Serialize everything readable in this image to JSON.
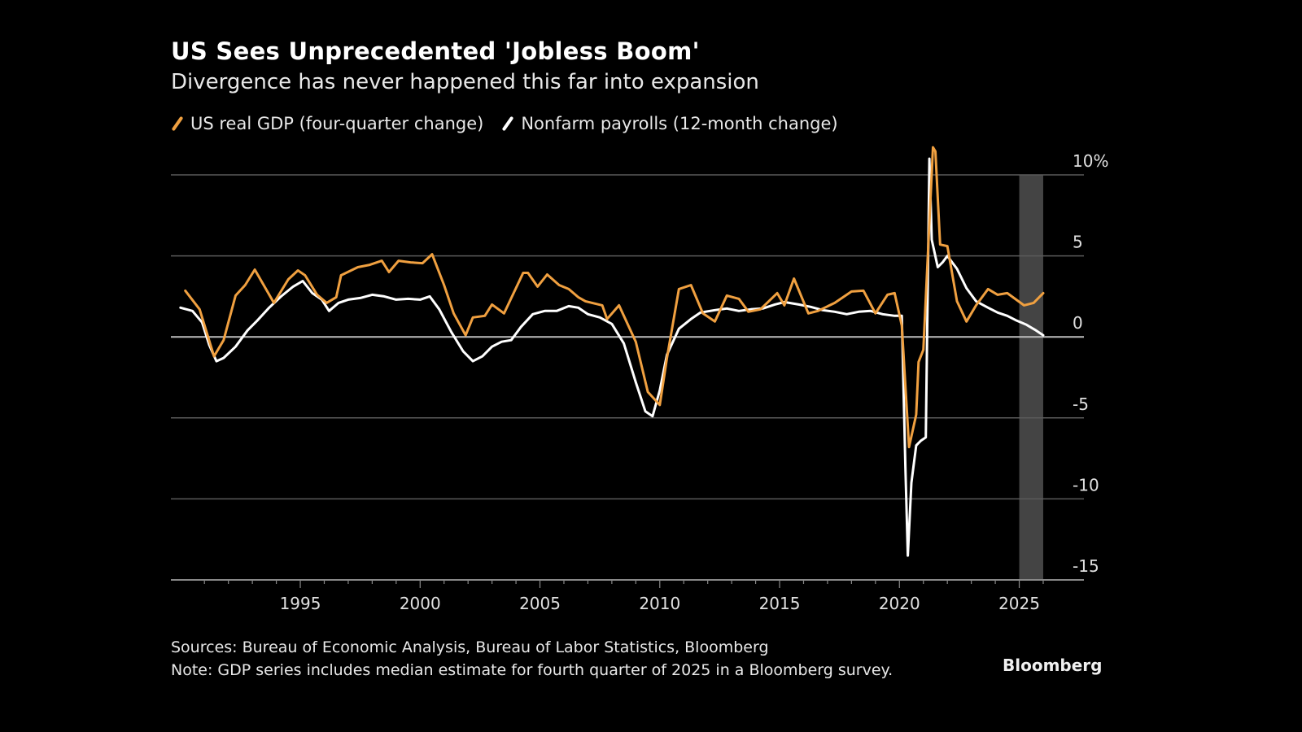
{
  "title": "US Sees Unprecedented 'Jobless Boom'",
  "subtitle": "Divergence has never happened this far into expansion",
  "legend": [
    {
      "label": "US real GDP (four-quarter change)",
      "color": "#f0a040",
      "icon": "slash-line-icon"
    },
    {
      "label": "Nonfarm payrolls (12-month change)",
      "color": "#ffffff",
      "icon": "slash-line-icon"
    }
  ],
  "footer": {
    "sources": "Sources: Bureau of Economic Analysis, Bureau of Labor Statistics, Bloomberg",
    "note": "Note: GDP series includes median estimate for fourth quarter of 2025 in a Bloomberg survey.",
    "brand": "Bloomberg"
  },
  "chart_data": {
    "type": "line",
    "title": "US Sees Unprecedented 'Jobless Boom'",
    "subtitle": "Divergence has never happened this far into expansion",
    "xlabel": "",
    "ylabel": "",
    "xlim": [
      1989.6,
      2027.7
    ],
    "ylim": [
      -15,
      10
    ],
    "x_ticks": [
      1995,
      2000,
      2005,
      2010,
      2015,
      2020,
      2025
    ],
    "x_tick_labels": [
      "1995",
      "2000",
      "2005",
      "2010",
      "2015",
      "2020",
      "2025"
    ],
    "y_ticks": [
      10,
      5,
      0,
      -5,
      -10,
      -15
    ],
    "y_tick_labels": [
      "10%",
      "5",
      "0",
      "-5",
      "-10",
      "-15"
    ],
    "y_axis_side": "right",
    "grid": true,
    "legend_position": "top-left",
    "shaded_region": {
      "x_start": 2025.0,
      "x_end": 2026.0,
      "color": "#444444"
    },
    "series": [
      {
        "name": "US real GDP (four-quarter change)",
        "color": "#f0a040",
        "points": [
          [
            1990.2,
            2.85
          ],
          [
            1990.8,
            1.7
          ],
          [
            1991.4,
            -1.2
          ],
          [
            1991.8,
            -0.2
          ],
          [
            1992.3,
            2.55
          ],
          [
            1992.7,
            3.2
          ],
          [
            1993.1,
            4.15
          ],
          [
            1993.9,
            2.1
          ],
          [
            1994.5,
            3.55
          ],
          [
            1994.9,
            4.1
          ],
          [
            1995.2,
            3.8
          ],
          [
            1995.7,
            2.6
          ],
          [
            1996.1,
            2.1
          ],
          [
            1996.5,
            2.45
          ],
          [
            1996.7,
            3.8
          ],
          [
            1997.4,
            4.3
          ],
          [
            1997.9,
            4.45
          ],
          [
            1998.4,
            4.7
          ],
          [
            1998.7,
            4.0
          ],
          [
            1999.1,
            4.7
          ],
          [
            1999.6,
            4.6
          ],
          [
            2000.1,
            4.55
          ],
          [
            2000.5,
            5.1
          ],
          [
            2001.0,
            3.2
          ],
          [
            2001.4,
            1.45
          ],
          [
            2001.9,
            0.1
          ],
          [
            2002.2,
            1.2
          ],
          [
            2002.7,
            1.3
          ],
          [
            2003.0,
            2.0
          ],
          [
            2003.5,
            1.45
          ],
          [
            2004.3,
            3.95
          ],
          [
            2004.5,
            3.95
          ],
          [
            2004.9,
            3.1
          ],
          [
            2005.3,
            3.85
          ],
          [
            2005.8,
            3.2
          ],
          [
            2006.2,
            2.95
          ],
          [
            2006.6,
            2.45
          ],
          [
            2006.9,
            2.2
          ],
          [
            2007.6,
            1.95
          ],
          [
            2007.8,
            1.1
          ],
          [
            2008.3,
            1.95
          ],
          [
            2009.0,
            -0.3
          ],
          [
            2009.5,
            -3.4
          ],
          [
            2010.0,
            -4.2
          ],
          [
            2010.3,
            -1.3
          ],
          [
            2010.8,
            2.95
          ],
          [
            2011.3,
            3.2
          ],
          [
            2011.8,
            1.45
          ],
          [
            2012.3,
            0.95
          ],
          [
            2012.8,
            2.55
          ],
          [
            2013.3,
            2.35
          ],
          [
            2013.7,
            1.55
          ],
          [
            2014.2,
            1.7
          ],
          [
            2014.9,
            2.7
          ],
          [
            2015.2,
            1.95
          ],
          [
            2015.6,
            3.6
          ],
          [
            2016.2,
            1.45
          ],
          [
            2016.6,
            1.6
          ],
          [
            2017.3,
            2.1
          ],
          [
            2018.0,
            2.8
          ],
          [
            2018.5,
            2.85
          ],
          [
            2019.0,
            1.45
          ],
          [
            2019.5,
            2.6
          ],
          [
            2019.8,
            2.7
          ],
          [
            2020.1,
            0.7
          ],
          [
            2020.4,
            -6.8
          ],
          [
            2020.7,
            -4.8
          ],
          [
            2020.8,
            -1.55
          ],
          [
            2021.0,
            -0.8
          ],
          [
            2021.4,
            11.7
          ],
          [
            2021.5,
            11.45
          ],
          [
            2021.7,
            5.7
          ],
          [
            2022.0,
            5.6
          ],
          [
            2022.4,
            2.2
          ],
          [
            2022.8,
            0.95
          ],
          [
            2023.2,
            1.95
          ],
          [
            2023.7,
            2.95
          ],
          [
            2024.1,
            2.6
          ],
          [
            2024.5,
            2.7
          ],
          [
            2025.2,
            1.95
          ],
          [
            2025.6,
            2.1
          ],
          [
            2026.0,
            2.7
          ]
        ]
      },
      {
        "name": "Nonfarm payrolls (12-month change)",
        "color": "#ffffff",
        "points": [
          [
            1990.0,
            1.8
          ],
          [
            1990.5,
            1.6
          ],
          [
            1990.9,
            0.9
          ],
          [
            1991.2,
            -0.5
          ],
          [
            1991.5,
            -1.5
          ],
          [
            1991.8,
            -1.3
          ],
          [
            1992.3,
            -0.6
          ],
          [
            1992.8,
            0.4
          ],
          [
            1993.2,
            1.0
          ],
          [
            1993.7,
            1.8
          ],
          [
            1994.2,
            2.5
          ],
          [
            1994.7,
            3.1
          ],
          [
            1995.1,
            3.45
          ],
          [
            1995.5,
            2.7
          ],
          [
            1995.9,
            2.3
          ],
          [
            1996.2,
            1.6
          ],
          [
            1996.6,
            2.1
          ],
          [
            1997.0,
            2.3
          ],
          [
            1997.5,
            2.4
          ],
          [
            1998.0,
            2.6
          ],
          [
            1998.5,
            2.5
          ],
          [
            1999.0,
            2.3
          ],
          [
            1999.5,
            2.35
          ],
          [
            2000.0,
            2.3
          ],
          [
            2000.4,
            2.5
          ],
          [
            2000.8,
            1.7
          ],
          [
            2001.3,
            0.3
          ],
          [
            2001.8,
            -0.9
          ],
          [
            2002.2,
            -1.5
          ],
          [
            2002.6,
            -1.2
          ],
          [
            2003.0,
            -0.6
          ],
          [
            2003.4,
            -0.3
          ],
          [
            2003.8,
            -0.2
          ],
          [
            2004.2,
            0.6
          ],
          [
            2004.7,
            1.4
          ],
          [
            2005.2,
            1.6
          ],
          [
            2005.7,
            1.6
          ],
          [
            2006.2,
            1.9
          ],
          [
            2006.6,
            1.8
          ],
          [
            2007.0,
            1.4
          ],
          [
            2007.5,
            1.2
          ],
          [
            2008.0,
            0.8
          ],
          [
            2008.5,
            -0.4
          ],
          [
            2009.0,
            -2.8
          ],
          [
            2009.4,
            -4.6
          ],
          [
            2009.7,
            -4.9
          ],
          [
            2010.0,
            -3.3
          ],
          [
            2010.3,
            -1.1
          ],
          [
            2010.8,
            0.5
          ],
          [
            2011.3,
            1.1
          ],
          [
            2011.7,
            1.5
          ],
          [
            2012.3,
            1.65
          ],
          [
            2012.8,
            1.75
          ],
          [
            2013.3,
            1.6
          ],
          [
            2013.8,
            1.7
          ],
          [
            2014.3,
            1.75
          ],
          [
            2014.8,
            2.0
          ],
          [
            2015.2,
            2.15
          ],
          [
            2015.8,
            2.0
          ],
          [
            2016.3,
            1.85
          ],
          [
            2016.8,
            1.65
          ],
          [
            2017.3,
            1.55
          ],
          [
            2017.8,
            1.4
          ],
          [
            2018.3,
            1.55
          ],
          [
            2018.8,
            1.6
          ],
          [
            2019.3,
            1.4
          ],
          [
            2019.8,
            1.3
          ],
          [
            2020.1,
            1.3
          ],
          [
            2020.25,
            -8.0
          ],
          [
            2020.35,
            -13.5
          ],
          [
            2020.5,
            -9.0
          ],
          [
            2020.7,
            -6.7
          ],
          [
            2020.9,
            -6.4
          ],
          [
            2021.1,
            -6.2
          ],
          [
            2021.2,
            5.0
          ],
          [
            2021.25,
            11.0
          ],
          [
            2021.35,
            6.0
          ],
          [
            2021.6,
            4.3
          ],
          [
            2021.8,
            4.6
          ],
          [
            2022.0,
            5.0
          ],
          [
            2022.4,
            4.2
          ],
          [
            2022.8,
            3.0
          ],
          [
            2023.2,
            2.2
          ],
          [
            2023.7,
            1.8
          ],
          [
            2024.1,
            1.5
          ],
          [
            2024.5,
            1.3
          ],
          [
            2024.9,
            1.0
          ],
          [
            2025.3,
            0.75
          ],
          [
            2025.7,
            0.4
          ],
          [
            2026.0,
            0.1
          ]
        ]
      }
    ]
  }
}
